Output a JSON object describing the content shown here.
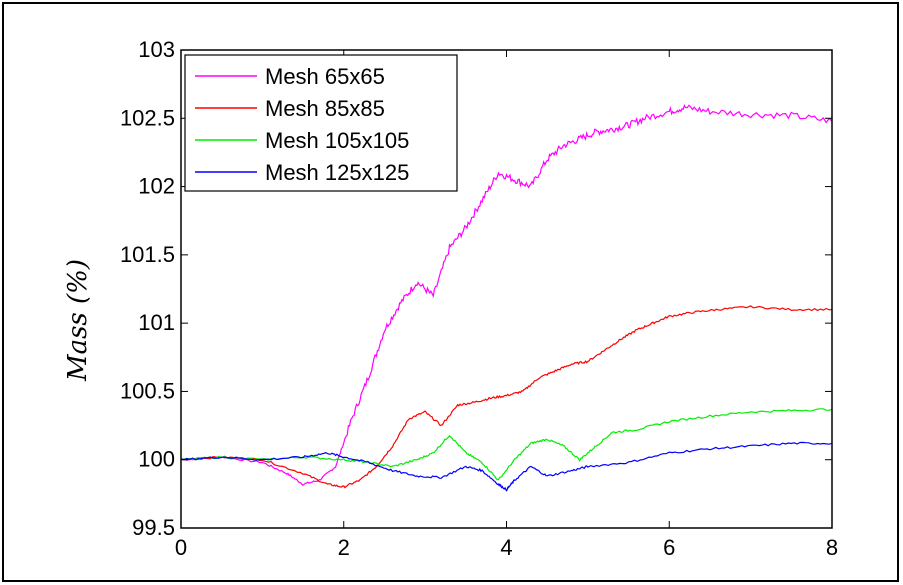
{
  "chart_data": {
    "type": "line",
    "title": "",
    "xlabel": "",
    "ylabel": "Mass (%)",
    "xlim": [
      0,
      8
    ],
    "ylim": [
      99.5,
      103
    ],
    "xticks": [
      "0",
      "2",
      "4",
      "6",
      "8"
    ],
    "yticks": [
      "99.5",
      "100",
      "100.5",
      "101",
      "101.5",
      "102",
      "102.5",
      "103"
    ],
    "grid": false,
    "legend_position": "top-left",
    "series": [
      {
        "name": "Mesh 65x65",
        "color": "#ff00ff",
        "x": [
          0,
          0.5,
          1.0,
          1.3,
          1.5,
          1.7,
          1.9,
          2.1,
          2.3,
          2.5,
          2.7,
          2.9,
          3.1,
          3.3,
          3.5,
          3.7,
          3.9,
          4.1,
          4.3,
          4.5,
          4.7,
          4.9,
          5.1,
          5.3,
          5.5,
          5.7,
          6.0,
          6.2,
          6.5,
          7.0,
          7.5,
          8.0
        ],
        "y": [
          100.0,
          100.02,
          99.98,
          99.9,
          99.82,
          99.85,
          99.95,
          100.3,
          100.6,
          100.95,
          101.15,
          101.3,
          101.2,
          101.55,
          101.7,
          101.9,
          102.1,
          102.05,
          102.0,
          102.2,
          102.3,
          102.35,
          102.4,
          102.42,
          102.45,
          102.5,
          102.55,
          102.58,
          102.55,
          102.53,
          102.52,
          102.48
        ]
      },
      {
        "name": "Mesh 85x85",
        "color": "#ff0000",
        "x": [
          0,
          0.5,
          1.0,
          1.5,
          1.8,
          2.0,
          2.2,
          2.4,
          2.6,
          2.8,
          3.0,
          3.2,
          3.4,
          3.6,
          3.8,
          4.0,
          4.2,
          4.4,
          4.6,
          4.8,
          5.0,
          5.2,
          5.4,
          5.6,
          5.8,
          6.0,
          6.3,
          6.6,
          7.0,
          7.5,
          8.0
        ],
        "y": [
          100.0,
          100.02,
          100.0,
          99.9,
          99.82,
          99.8,
          99.85,
          99.95,
          100.1,
          100.3,
          100.35,
          100.25,
          100.4,
          100.42,
          100.45,
          100.47,
          100.5,
          100.6,
          100.65,
          100.7,
          100.72,
          100.8,
          100.88,
          100.95,
          101.0,
          101.05,
          101.08,
          101.1,
          101.12,
          101.1,
          101.1
        ]
      },
      {
        "name": "Mesh 105x105",
        "color": "#00ee00",
        "x": [
          0,
          0.5,
          1.0,
          1.5,
          2.0,
          2.3,
          2.6,
          2.9,
          3.1,
          3.3,
          3.5,
          3.7,
          3.9,
          4.1,
          4.3,
          4.5,
          4.7,
          4.9,
          5.1,
          5.3,
          5.6,
          6.0,
          6.5,
          7.0,
          7.5,
          8.0
        ],
        "y": [
          100.0,
          100.02,
          100.0,
          100.02,
          100.0,
          99.98,
          99.95,
          100.0,
          100.05,
          100.18,
          100.05,
          99.98,
          99.85,
          100.0,
          100.12,
          100.15,
          100.1,
          100.0,
          100.1,
          100.2,
          100.22,
          100.28,
          100.32,
          100.35,
          100.36,
          100.37
        ]
      },
      {
        "name": "Mesh 125x125",
        "color": "#0000ff",
        "x": [
          0,
          0.5,
          1.0,
          1.5,
          1.8,
          2.0,
          2.3,
          2.6,
          2.9,
          3.2,
          3.5,
          3.7,
          3.9,
          4.0,
          4.1,
          4.3,
          4.5,
          4.8,
          5.0,
          5.5,
          6.0,
          6.5,
          7.0,
          7.5,
          8.0
        ],
        "y": [
          100.0,
          100.02,
          100.0,
          100.02,
          100.05,
          100.02,
          99.98,
          99.92,
          99.88,
          99.87,
          99.95,
          99.92,
          99.82,
          99.78,
          99.85,
          99.95,
          99.88,
          99.92,
          99.95,
          99.98,
          100.05,
          100.08,
          100.1,
          100.12,
          100.12
        ]
      }
    ]
  }
}
